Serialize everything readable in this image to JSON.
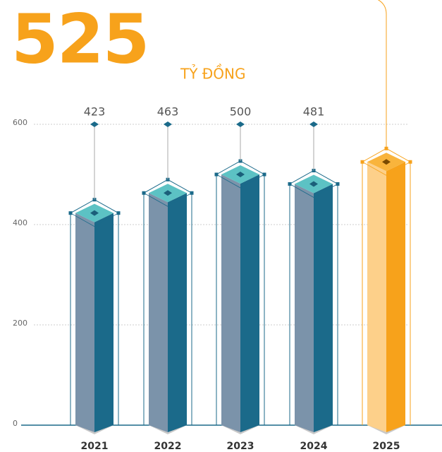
{
  "chart_data": {
    "type": "bar3d",
    "unit": "TỶ ĐỒNG",
    "categories": [
      "2021",
      "2022",
      "2023",
      "2024",
      "2025"
    ],
    "values": [
      423,
      463,
      500,
      481,
      525
    ],
    "color": "#1b6a8a",
    "highlight_color": "#f7a21b",
    "ylim": [
      0,
      600
    ],
    "yticks": [
      0,
      200,
      400,
      600
    ],
    "grid": true
  }
}
